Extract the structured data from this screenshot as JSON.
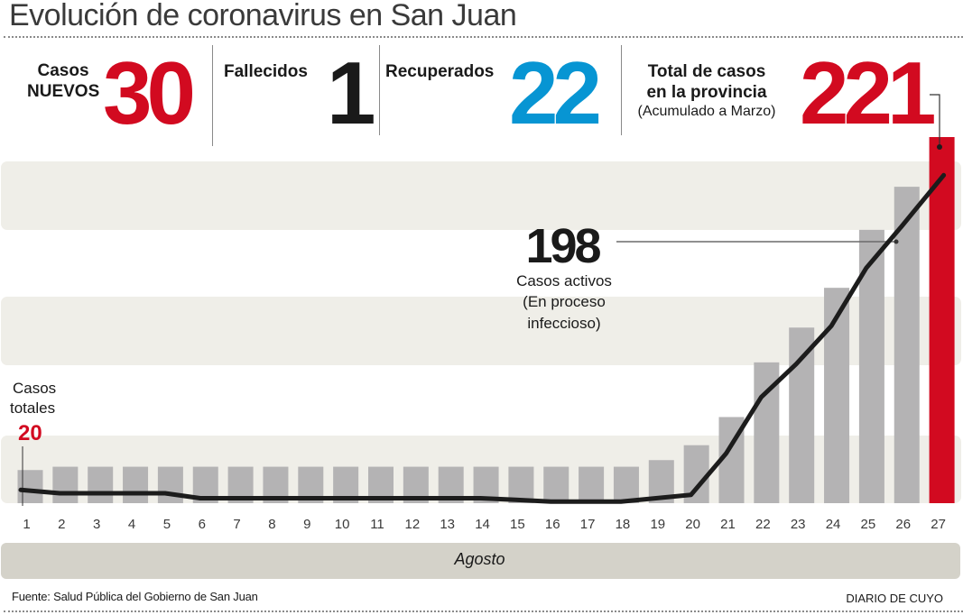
{
  "title": "Evolución de coronavirus en San Juan",
  "stats": {
    "new_cases": {
      "label_line1": "Casos",
      "label_line2": "NUEVOS",
      "value": "30",
      "color": "#d20a20"
    },
    "deaths": {
      "label": "Fallecidos",
      "value": "1",
      "color": "#1a1a1a"
    },
    "recovered": {
      "label": "Recuperados",
      "value": "22",
      "color": "#0795d3"
    },
    "total": {
      "label_line1": "Total de casos",
      "label_line2": "en la provincia",
      "sublabel": "(Acumulado a Marzo)",
      "value": "221",
      "color": "#d20a20"
    }
  },
  "annotations": {
    "active": {
      "value": "198",
      "line1": "Casos activos",
      "line2": "(En proceso",
      "line3": "infeccioso)"
    },
    "total_start": {
      "line1": "Casos",
      "line2": "totales",
      "value": "20"
    }
  },
  "month_label": "Agosto",
  "source": "Fuente: Salud Pública del Gobierno de San Juan",
  "brand": "DIARIO DE CUYO",
  "colors": {
    "bar": "#b4b3b4",
    "bar_highlight": "#d20a20",
    "line": "#1c1c1c",
    "band": "#efeee8",
    "accent_red": "#d20a20",
    "accent_blue": "#0795d3"
  },
  "chart_data": {
    "type": "bar",
    "title": "Evolución de coronavirus en San Juan",
    "xlabel": "Agosto",
    "ylabel": "",
    "categories": [
      "1",
      "2",
      "3",
      "4",
      "5",
      "6",
      "7",
      "8",
      "9",
      "10",
      "11",
      "12",
      "13",
      "14",
      "15",
      "16",
      "17",
      "18",
      "19",
      "20",
      "21",
      "22",
      "23",
      "24",
      "25",
      "26",
      "27"
    ],
    "ylim": [
      0,
      221
    ],
    "grid": "horizontal bands",
    "series": [
      {
        "name": "Casos totales",
        "type": "bar",
        "values": [
          20,
          22,
          22,
          22,
          22,
          22,
          22,
          22,
          22,
          22,
          22,
          22,
          22,
          22,
          22,
          22,
          22,
          22,
          26,
          35,
          52,
          85,
          106,
          130,
          165,
          191,
          221
        ],
        "highlight_last": true
      },
      {
        "name": "Casos activos",
        "type": "line",
        "values": [
          8,
          6,
          6,
          6,
          6,
          3,
          3,
          3,
          3,
          3,
          3,
          3,
          3,
          3,
          2,
          1,
          1,
          1,
          3,
          5,
          30,
          64,
          84,
          107,
          142,
          167,
          198
        ]
      }
    ],
    "annotations": [
      {
        "category": "1",
        "series": "Casos totales",
        "text": "Casos totales 20"
      },
      {
        "category": "26",
        "series": "Casos activos",
        "text": "198 Casos activos (En proceso infeccioso)"
      },
      {
        "category": "27",
        "series": "Casos totales",
        "text": "221 Total de casos en la provincia"
      }
    ]
  }
}
